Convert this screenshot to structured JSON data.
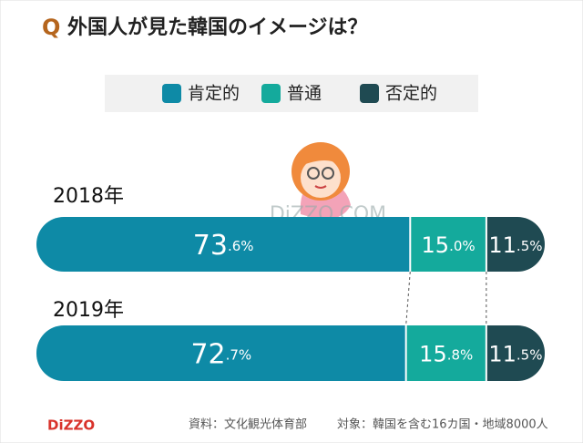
{
  "q_label": "Q",
  "logo": "DiZZO",
  "watermark": "DiZZO.COM",
  "chart_data": {
    "type": "stacked-bar-horizontal",
    "title": "外国人が見た韓国のイメージは？",
    "categories": [
      "2018年",
      "2019年"
    ],
    "series": [
      {
        "name": "肯定的",
        "color": "#0e8aa6",
        "values": [
          73.6,
          72.7
        ],
        "value_labels": [
          "73.6%",
          "72.7%"
        ]
      },
      {
        "name": "普通",
        "color": "#14aa9c",
        "values": [
          15.0,
          15.8
        ],
        "value_labels": [
          "15.0%",
          "15.8%"
        ]
      },
      {
        "name": "否定的",
        "color": "#1f4a52",
        "values": [
          11.5,
          11.5
        ],
        "value_labels": [
          "11.5%",
          "11.5%"
        ]
      }
    ],
    "source": "資料：文化観光体育部",
    "note": "対象：韓国を含む16カ国・地域8000人"
  }
}
